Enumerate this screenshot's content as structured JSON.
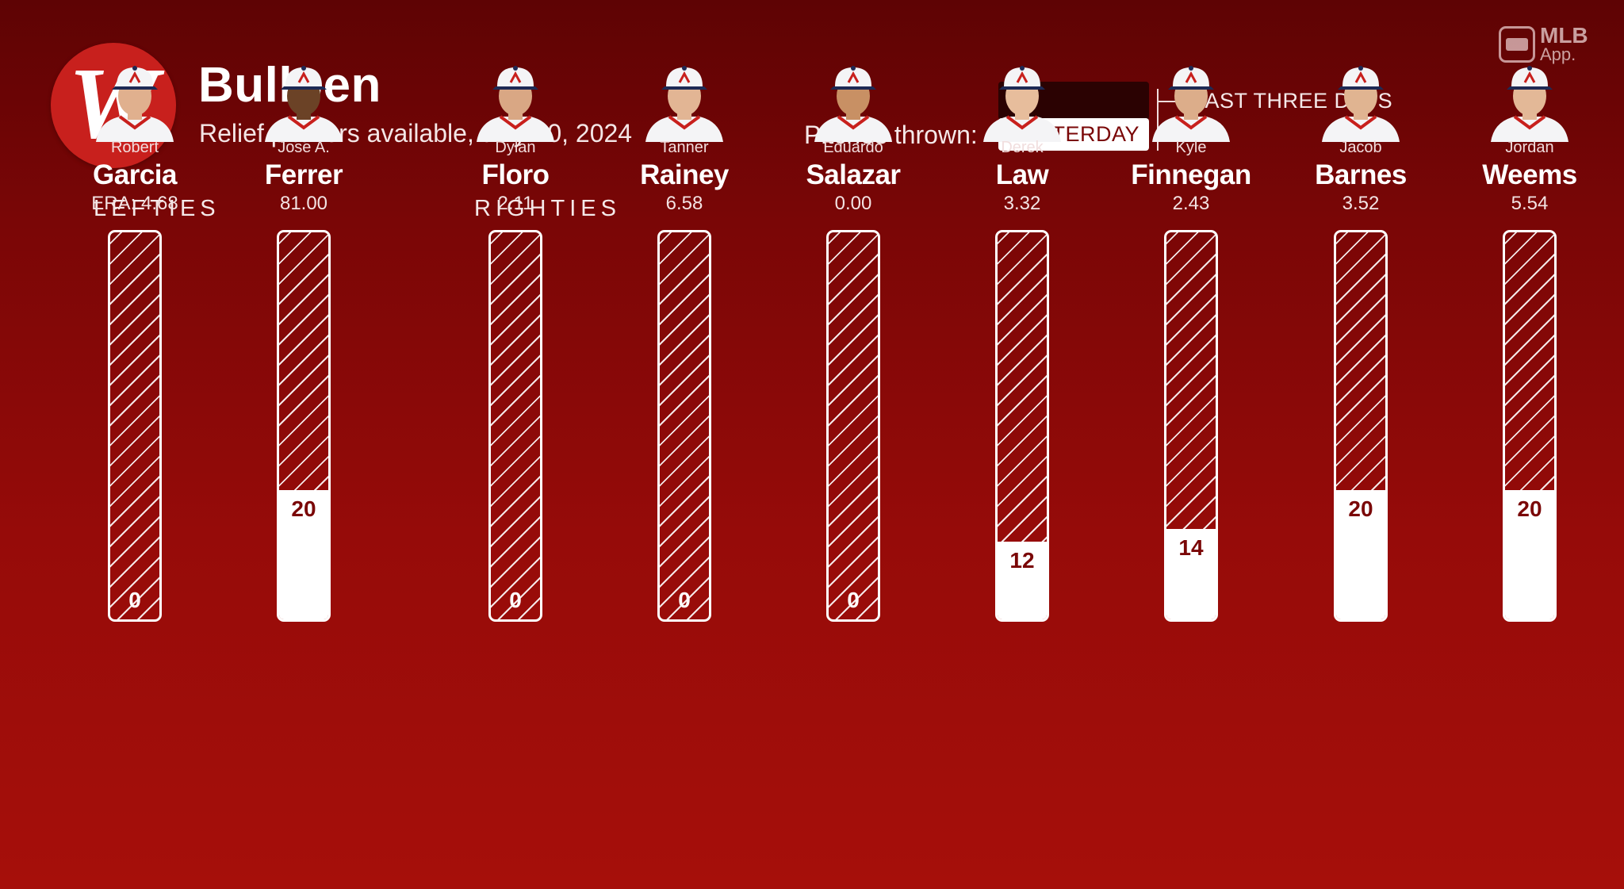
{
  "header": {
    "logo_letter": "W",
    "title": "Bullpen",
    "subtitle": "Relief pitchers available, July 20, 2024",
    "brand_line1": "MLB",
    "brand_line2": "App."
  },
  "legend": {
    "pitches_label": "Pitches thrown:",
    "yesterday_label": "YESTERDAY",
    "three_days_label": "LAST THREE DAYS"
  },
  "groups": {
    "lefties": "LEFTIES",
    "righties": "RIGHTIES"
  },
  "colors": {
    "background_top": "#5e0304",
    "background_bottom": "#a60f0a",
    "yesterday": "#ffffff",
    "last_three_days": "#2b0202"
  },
  "chart_data": {
    "type": "bar",
    "title": "Bullpen",
    "subtitle": "Relief pitchers available, July 20, 2024",
    "xlabel": "",
    "ylabel": "",
    "ylim": [
      0,
      60
    ],
    "era_prefix": "ERA: ",
    "series": [
      {
        "name": "YESTERDAY",
        "values": [
          0,
          20,
          0,
          0,
          0,
          12,
          14,
          20,
          20
        ]
      }
    ],
    "categories": [
      "Garcia",
      "Ferrer",
      "Floro",
      "Rainey",
      "Salazar",
      "Law",
      "Finnegan",
      "Barnes",
      "Weems"
    ],
    "pitchers": [
      {
        "first": "Robert",
        "last": "Garcia",
        "era": "4.68",
        "yesterday": 0,
        "group": "lefties"
      },
      {
        "first": "Jose A.",
        "last": "Ferrer",
        "era": "81.00",
        "yesterday": 20,
        "group": "lefties"
      },
      {
        "first": "Dylan",
        "last": "Floro",
        "era": "2.11",
        "yesterday": 0,
        "group": "righties"
      },
      {
        "first": "Tanner",
        "last": "Rainey",
        "era": "6.58",
        "yesterday": 0,
        "group": "righties"
      },
      {
        "first": "Eduardo",
        "last": "Salazar",
        "era": "0.00",
        "yesterday": 0,
        "group": "righties"
      },
      {
        "first": "Derek",
        "last": "Law",
        "era": "3.32",
        "yesterday": 12,
        "group": "righties"
      },
      {
        "first": "Kyle",
        "last": "Finnegan",
        "era": "2.43",
        "yesterday": 14,
        "group": "righties"
      },
      {
        "first": "Jacob",
        "last": "Barnes",
        "era": "3.52",
        "yesterday": 20,
        "group": "righties"
      },
      {
        "first": "Jordan",
        "last": "Weems",
        "era": "5.54",
        "yesterday": 20,
        "group": "righties"
      }
    ]
  }
}
